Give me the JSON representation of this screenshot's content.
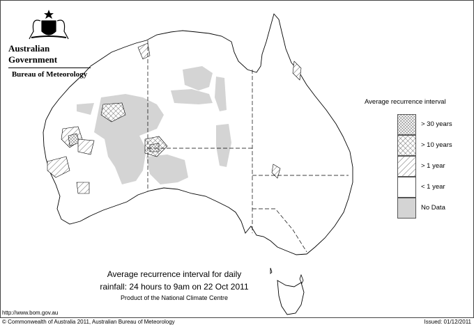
{
  "header": {
    "logo": "Australian Government coat of arms",
    "government": "Australian Government",
    "bureau": "Bureau of Meteorology"
  },
  "legend": {
    "title": "Average recurrence interval",
    "items": [
      {
        "label": "> 30 years",
        "pattern": "dense-crosshatch"
      },
      {
        "label": "> 10 years",
        "pattern": "crosshatch"
      },
      {
        "label": "> 1 year",
        "pattern": "diagonal-hatch"
      },
      {
        "label": "< 1 year",
        "pattern": "white"
      },
      {
        "label": "No Data",
        "pattern": "grey",
        "color": "#d4d4d4"
      }
    ]
  },
  "caption": {
    "line1": "Average recurrence interval for daily",
    "line2": "rainfall: 24 hours to 9am on 22 Oct 2011",
    "line3": "Product of the National Climate Centre"
  },
  "footer": {
    "url": "http://www.bom.gov.au",
    "copyright": "© Commonwealth of Australia 2011, Australian Bureau of Meteorology",
    "issued": "Issued: 01/12/2011"
  }
}
